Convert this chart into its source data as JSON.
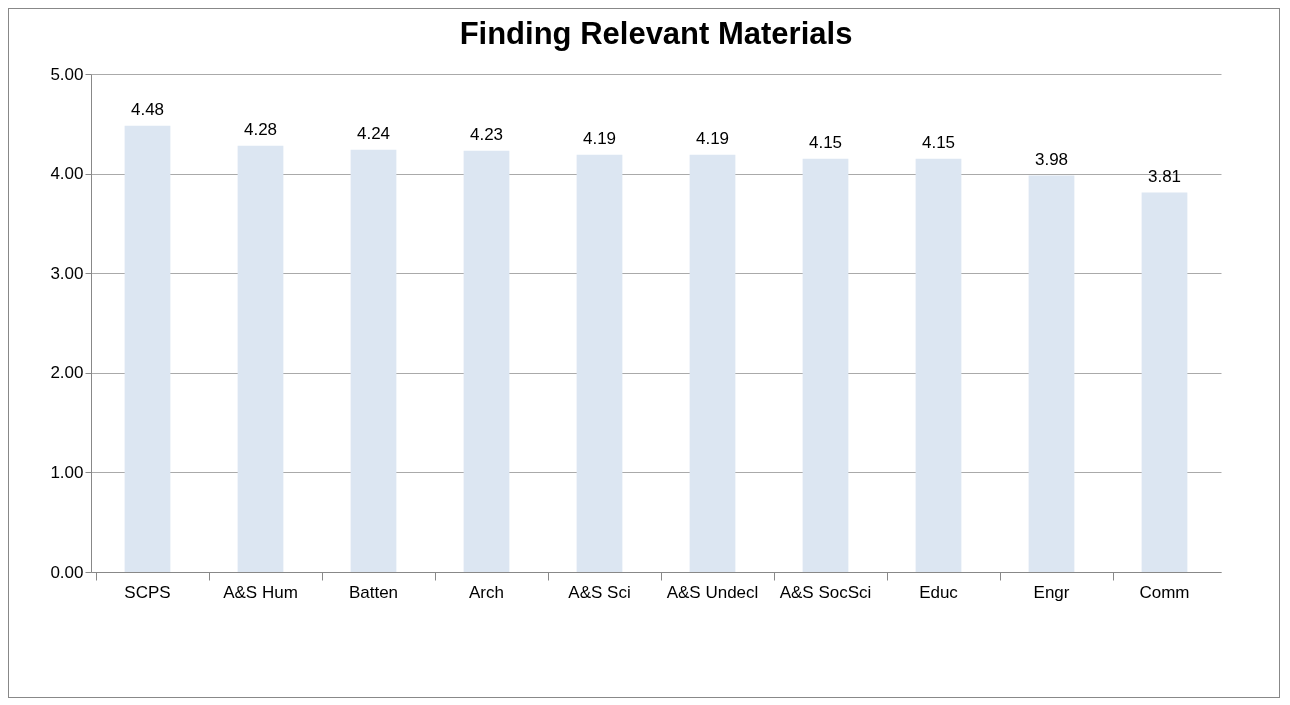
{
  "chart_data": {
    "type": "bar",
    "title": "Finding Relevant Materials",
    "categories": [
      "SCPS",
      "A&S Hum",
      "Batten",
      "Arch",
      "A&S Sci",
      "A&S Undecl",
      "A&S SocSci",
      "Educ",
      "Engr",
      "Comm"
    ],
    "values": [
      4.48,
      4.28,
      4.24,
      4.23,
      4.19,
      4.19,
      4.15,
      4.15,
      3.98,
      3.81
    ],
    "color": "#dce6f2",
    "ylim": [
      0,
      5
    ],
    "yticks": [
      {
        "value": 0,
        "label": "0.00"
      },
      {
        "value": 1,
        "label": "1.00"
      },
      {
        "value": 2,
        "label": "2.00"
      },
      {
        "value": 3,
        "label": "3.00"
      },
      {
        "value": 4,
        "label": "4.00"
      },
      {
        "value": 5,
        "label": "5.00"
      }
    ],
    "grid": true,
    "data_labels": true
  }
}
